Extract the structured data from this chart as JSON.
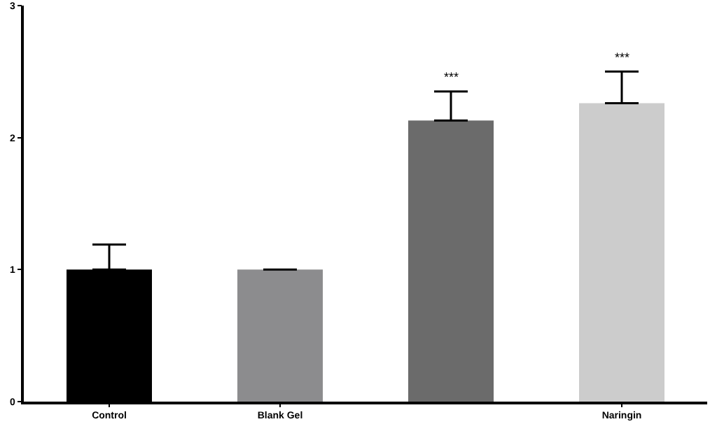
{
  "chart_data": {
    "type": "bar",
    "categories": [
      "Control",
      "Blank Gel",
      null,
      "Naringin"
    ],
    "values": [
      1,
      1,
      2.13,
      2.26
    ],
    "errors": [
      0.19,
      0,
      0.22,
      0.24
    ],
    "colors": [
      "#000000",
      "#8c8c8e",
      "#6b6b6b",
      "#cccccc"
    ],
    "ylim": [
      0,
      3
    ],
    "yticks": [
      0,
      1,
      2,
      3
    ],
    "annotations": [
      {
        "text": "***",
        "y": 2.35
      },
      {
        "text": "***",
        "x": "Naringin",
        "y": 2.5
      }
    ]
  }
}
